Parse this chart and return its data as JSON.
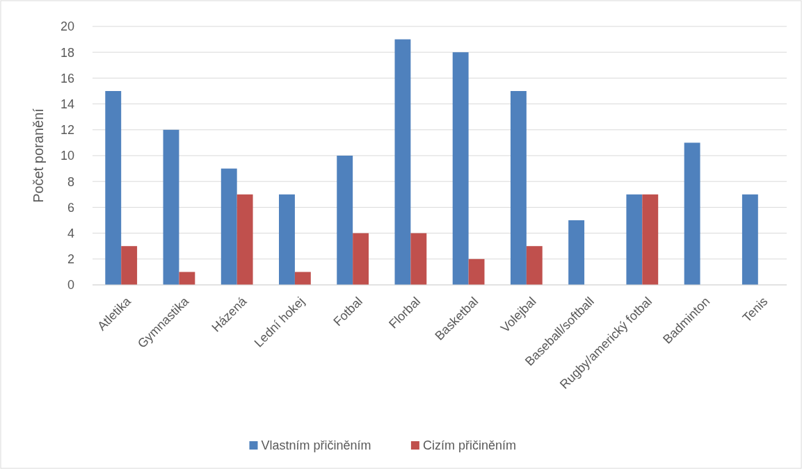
{
  "chart_data": {
    "type": "bar",
    "ylabel": "Počet poranění",
    "categories": [
      "Atletika",
      "Gymnastika",
      "Házená",
      "Lední hokej",
      "Fotbal",
      "Florbal",
      "Basketbal",
      "Volejbal",
      "Baseball/softball",
      "Rugby/americký fotbal",
      "Badminton",
      "Tenis"
    ],
    "series": [
      {
        "name": "Vlastním přičiněním",
        "color": "#4f81bd",
        "values": [
          15,
          12,
          9,
          7,
          10,
          19,
          18,
          15,
          5,
          7,
          11,
          7
        ]
      },
      {
        "name": "Cizím přičiněním",
        "color": "#c0504d",
        "values": [
          3,
          1,
          7,
          1,
          4,
          4,
          2,
          3,
          0,
          7,
          0,
          0
        ]
      }
    ],
    "ylim": [
      0,
      20
    ],
    "yticks": [
      0,
      2,
      4,
      6,
      8,
      10,
      12,
      14,
      16,
      18,
      20
    ],
    "grid": "y",
    "legend": "bottom"
  }
}
